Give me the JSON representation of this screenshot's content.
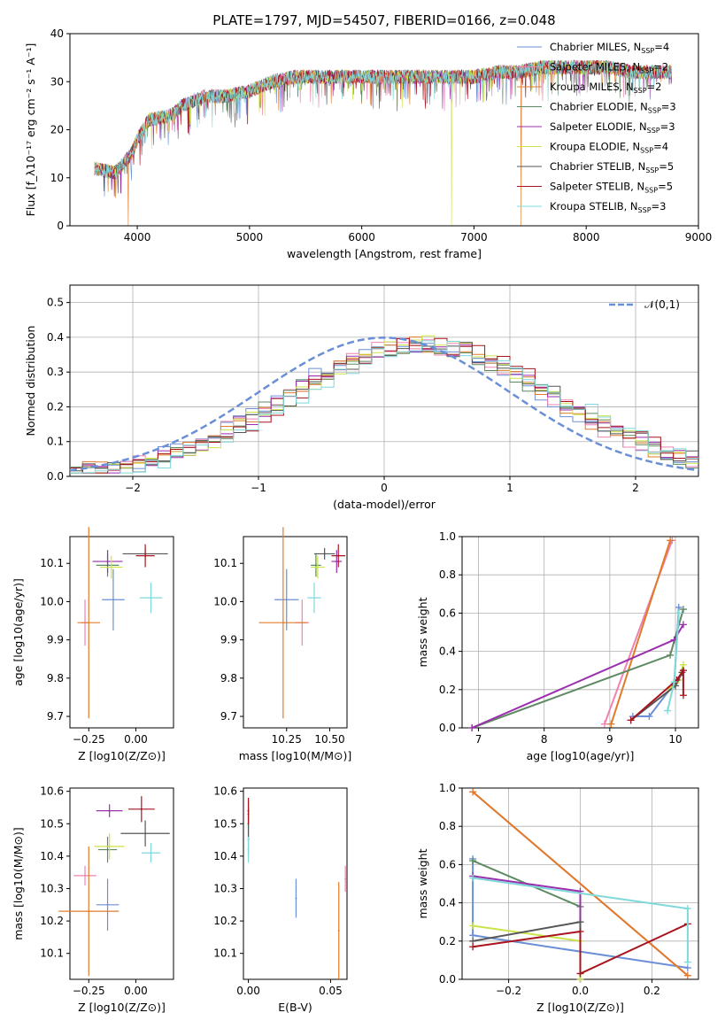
{
  "colors": {
    "chabrier_miles": "#6a8fd6",
    "salpeter_miles": "#ee82b0",
    "kroupa_miles": "#e07b2a",
    "chabrier_elodie": "#5e8a62",
    "salpeter_elodie": "#9b2fae",
    "kroupa_elodie": "#cde34a",
    "chabrier_stelib": "#555555",
    "salpeter_stelib": "#a8141d",
    "kroupa_stelib": "#7fd8da",
    "gauss": "#6a8fd6"
  },
  "chart_data": [
    {
      "id": "spectrum",
      "type": "line",
      "title": "PLATE=1797, MJD=54507, FIBERID=0166, z=0.048",
      "xlabel": "wavelength [Angstrom, rest frame]",
      "ylabel": "Flux [f_λ10⁻¹⁷ erg cm⁻² s⁻¹ A⁻¹]",
      "xlim": [
        3400,
        9000
      ],
      "ylim": [
        0,
        40
      ],
      "xticks": [
        "4000",
        "5000",
        "6000",
        "7000",
        "8000",
        "9000"
      ],
      "yticks": [
        "0",
        "10",
        "20",
        "30",
        "40"
      ],
      "legend": [
        "Chabrier MILES, N_SSP=4",
        "Salpeter MILES, N_SSP=2",
        "Kroupa MILES, N_SSP=2",
        "Chabrier ELODIE, N_SSP=3",
        "Salpeter ELODIE, N_SSP=3",
        "Kroupa ELODIE, N_SSP=4",
        "Chabrier STELIB, N_SSP=5",
        "Salpeter STELIB, N_SSP=5",
        "Kroupa STELIB, N_SSP=3"
      ],
      "continuum": [
        [
          3620,
          12
        ],
        [
          3800,
          11
        ],
        [
          3950,
          15
        ],
        [
          4000,
          18
        ],
        [
          4100,
          22
        ],
        [
          4300,
          23
        ],
        [
          4400,
          25
        ],
        [
          4600,
          27
        ],
        [
          4800,
          27
        ],
        [
          5000,
          28
        ],
        [
          5200,
          30
        ],
        [
          5400,
          31
        ],
        [
          5600,
          31
        ],
        [
          5800,
          31
        ],
        [
          6000,
          31
        ],
        [
          6200,
          31
        ],
        [
          6400,
          31
        ],
        [
          6600,
          31
        ],
        [
          6800,
          31
        ],
        [
          7000,
          31
        ],
        [
          7200,
          32
        ],
        [
          7400,
          32
        ],
        [
          7600,
          33
        ],
        [
          7800,
          33
        ],
        [
          8000,
          33
        ],
        [
          8200,
          33
        ],
        [
          8400,
          32
        ],
        [
          8600,
          32
        ],
        [
          8760,
          32
        ]
      ],
      "dropouts": [
        [
          3920,
          0
        ],
        [
          6800,
          0
        ],
        [
          7420,
          0
        ]
      ]
    },
    {
      "id": "residuals",
      "type": "line",
      "xlabel": "(data-model)/error",
      "ylabel": "Normed distribution",
      "xlim": [
        -2.5,
        2.5
      ],
      "ylim": [
        0,
        0.55
      ],
      "xticks": [
        "−2",
        "−1",
        "0",
        "1",
        "2"
      ],
      "yticks": [
        "0.0",
        "0.1",
        "0.2",
        "0.3",
        "0.4",
        "0.5"
      ],
      "legend": [
        "𝒩(0,1)"
      ],
      "hist_bins": [
        -2.5,
        -2.4,
        -2.3,
        -2.2,
        -2.1,
        -2.0,
        -1.9,
        -1.8,
        -1.7,
        -1.6,
        -1.5,
        -1.4,
        -1.3,
        -1.2,
        -1.1,
        -1.0,
        -0.9,
        -0.8,
        -0.7,
        -0.6,
        -0.5,
        -0.4,
        -0.3,
        -0.2,
        -0.1,
        0.0,
        0.1,
        0.2,
        0.3,
        0.4,
        0.5,
        0.6,
        0.7,
        0.8,
        0.9,
        1.0,
        1.1,
        1.2,
        1.3,
        1.4,
        1.5,
        1.6,
        1.7,
        1.8,
        1.9,
        2.0,
        2.1,
        2.2,
        2.3,
        2.4,
        2.5
      ]
    },
    {
      "id": "age_vs_Z",
      "type": "scatter",
      "xlabel": "Z [log10(Z/Z⊙)]",
      "ylabel": "age  [log10(age/yr)]",
      "xlim": [
        -0.35,
        0.2
      ],
      "ylim": [
        9.67,
        10.17
      ],
      "xticks": [
        "−0.25",
        "0.00"
      ],
      "yticks": [
        "9.7",
        "9.8",
        "9.9",
        "10.0",
        "10.1"
      ],
      "points": [
        {
          "c": "chabrier_miles",
          "x": -0.12,
          "xe": 0.06,
          "y": 10.005,
          "ye": 0.08
        },
        {
          "c": "salpeter_miles",
          "x": -0.27,
          "xe": 0.02,
          "y": 9.945,
          "ye": 0.06
        },
        {
          "c": "kroupa_miles",
          "x": -0.25,
          "xe": 0.06,
          "y": 9.945,
          "ye": 0.25
        },
        {
          "c": "chabrier_elodie",
          "x": -0.15,
          "xe": 0.06,
          "y": 10.095,
          "ye": 0.03
        },
        {
          "c": "salpeter_elodie",
          "x": -0.15,
          "xe": 0.08,
          "y": 10.105,
          "ye": 0.03
        },
        {
          "c": "kroupa_elodie",
          "x": -0.13,
          "xe": 0.06,
          "y": 10.09,
          "ye": 0.03
        },
        {
          "c": "chabrier_stelib",
          "x": 0.05,
          "xe": 0.12,
          "y": 10.125,
          "ye": 0.015
        },
        {
          "c": "salpeter_stelib",
          "x": 0.05,
          "xe": 0.05,
          "y": 10.12,
          "ye": 0.03
        },
        {
          "c": "kroupa_stelib",
          "x": 0.08,
          "xe": 0.06,
          "y": 10.01,
          "ye": 0.04
        }
      ]
    },
    {
      "id": "age_vs_mass",
      "type": "scatter",
      "xlabel": "mass [log10(M/M⊙)]",
      "ylabel": "",
      "xlim": [
        10.0,
        10.6
      ],
      "ylim": [
        9.67,
        10.17
      ],
      "xticks": [
        "10.25",
        "10.50"
      ],
      "yticks": [
        "9.7",
        "9.8",
        "9.9",
        "10.0",
        "10.1"
      ],
      "points": [
        {
          "c": "chabrier_miles",
          "x": 10.25,
          "xe": 0.07,
          "y": 10.005,
          "ye": 0.08
        },
        {
          "c": "salpeter_miles",
          "x": 10.34,
          "xe": 0.04,
          "y": 9.945,
          "ye": 0.06
        },
        {
          "c": "kroupa_miles",
          "x": 10.23,
          "xe": 0.14,
          "y": 9.945,
          "ye": 0.25
        },
        {
          "c": "chabrier_elodie",
          "x": 10.42,
          "xe": 0.03,
          "y": 10.095,
          "ye": 0.03
        },
        {
          "c": "salpeter_elodie",
          "x": 10.54,
          "xe": 0.03,
          "y": 10.105,
          "ye": 0.03
        },
        {
          "c": "kroupa_elodie",
          "x": 10.43,
          "xe": 0.04,
          "y": 10.09,
          "ye": 0.03
        },
        {
          "c": "chabrier_stelib",
          "x": 10.47,
          "xe": 0.06,
          "y": 10.125,
          "ye": 0.015
        },
        {
          "c": "salpeter_stelib",
          "x": 10.55,
          "xe": 0.04,
          "y": 10.12,
          "ye": 0.03
        },
        {
          "c": "kroupa_stelib",
          "x": 10.41,
          "xe": 0.04,
          "y": 10.01,
          "ye": 0.04
        }
      ]
    },
    {
      "id": "weight_vs_age",
      "type": "line",
      "xlabel": "age  [log10(age/yr)]",
      "ylabel": "mass weight",
      "xlim": [
        6.75,
        10.35
      ],
      "ylim": [
        0,
        1.0
      ],
      "xticks": [
        "7",
        "8",
        "9",
        "10"
      ],
      "yticks": [
        "0.0",
        "0.2",
        "0.4",
        "0.6",
        "0.8",
        "1.0"
      ],
      "lines": [
        {
          "c": "chabrier_miles",
          "pts": [
            [
              9.35,
              0.06
            ],
            [
              9.6,
              0.06
            ],
            [
              9.98,
              0.23
            ],
            [
              10.05,
              0.63
            ]
          ]
        },
        {
          "c": "salpeter_miles",
          "pts": [
            [
              8.92,
              0.02
            ],
            [
              9.95,
              0.98
            ]
          ]
        },
        {
          "c": "kroupa_miles",
          "pts": [
            [
              9.02,
              0.02
            ],
            [
              9.92,
              0.98
            ]
          ]
        },
        {
          "c": "chabrier_elodie",
          "pts": [
            [
              6.9,
              0.0
            ],
            [
              9.92,
              0.38
            ],
            [
              10.12,
              0.62
            ]
          ]
        },
        {
          "c": "salpeter_elodie",
          "pts": [
            [
              6.9,
              0.0
            ],
            [
              9.98,
              0.46
            ],
            [
              10.12,
              0.54
            ]
          ]
        },
        {
          "c": "kroupa_elodie",
          "pts": [
            [
              9.9,
              0.2
            ],
            [
              10.05,
              0.25
            ],
            [
              10.12,
              0.33
            ]
          ]
        },
        {
          "c": "chabrier_stelib",
          "pts": [
            [
              9.32,
              0.04
            ],
            [
              10.0,
              0.22
            ],
            [
              10.1,
              0.29
            ]
          ]
        },
        {
          "c": "salpeter_stelib",
          "pts": [
            [
              9.32,
              0.04
            ],
            [
              10.02,
              0.25
            ],
            [
              10.12,
              0.3
            ],
            [
              10.12,
              0.17
            ]
          ]
        },
        {
          "c": "kroupa_stelib",
          "pts": [
            [
              9.88,
              0.09
            ],
            [
              9.98,
              0.24
            ],
            [
              10.05,
              0.6
            ]
          ]
        }
      ]
    },
    {
      "id": "mass_vs_Z",
      "type": "scatter",
      "xlabel": "Z [log10(Z/Z⊙)]",
      "ylabel": "mass [log10(M/M⊙)]",
      "xlim": [
        -0.35,
        0.2
      ],
      "ylim": [
        10.02,
        10.61
      ],
      "xticks": [
        "−0.25",
        "0.00"
      ],
      "yticks": [
        "10.1",
        "10.2",
        "10.3",
        "10.4",
        "10.5",
        "10.6"
      ],
      "points": [
        {
          "c": "chabrier_miles",
          "x": -0.15,
          "xe": 0.06,
          "y": 10.25,
          "ye": 0.08
        },
        {
          "c": "salpeter_miles",
          "x": -0.27,
          "xe": 0.06,
          "y": 10.34,
          "ye": 0.03
        },
        {
          "c": "kroupa_miles",
          "x": -0.25,
          "xe": 0.16,
          "y": 10.23,
          "ye": 0.2
        },
        {
          "c": "chabrier_elodie",
          "x": -0.15,
          "xe": 0.05,
          "y": 10.42,
          "ye": 0.04
        },
        {
          "c": "salpeter_elodie",
          "x": -0.14,
          "xe": 0.07,
          "y": 10.54,
          "ye": 0.02
        },
        {
          "c": "kroupa_elodie",
          "x": -0.14,
          "xe": 0.08,
          "y": 10.43,
          "ye": 0.04
        },
        {
          "c": "chabrier_stelib",
          "x": 0.05,
          "xe": 0.13,
          "y": 10.47,
          "ye": 0.04
        },
        {
          "c": "salpeter_stelib",
          "x": 0.03,
          "xe": 0.07,
          "y": 10.545,
          "ye": 0.04
        },
        {
          "c": "kroupa_stelib",
          "x": 0.08,
          "xe": 0.05,
          "y": 10.41,
          "ye": 0.03
        }
      ]
    },
    {
      "id": "mass_vs_ebv",
      "type": "scatter",
      "xlabel": "E(B-V)",
      "ylabel": "",
      "xlim": [
        -0.003,
        0.06
      ],
      "ylim": [
        10.02,
        10.61
      ],
      "xticks": [
        "0.00",
        "0.05"
      ],
      "yticks": [
        "10.1",
        "10.2",
        "10.3",
        "10.4",
        "10.5",
        "10.6"
      ],
      "points": [
        {
          "c": "chabrier_miles",
          "x": 0.029,
          "xe": 0,
          "y": 10.27,
          "ye": 0.06
        },
        {
          "c": "salpeter_miles",
          "x": 0.059,
          "xe": 0,
          "y": 10.33,
          "ye": 0.04
        },
        {
          "c": "kroupa_miles",
          "x": 0.055,
          "xe": 0,
          "y": 10.17,
          "ye": 0.15
        },
        {
          "c": "chabrier_elodie",
          "x": 0.0,
          "xe": 0,
          "y": 10.45,
          "ye": 0.05
        },
        {
          "c": "salpeter_elodie",
          "x": 0.0,
          "xe": 0,
          "y": 10.53,
          "ye": 0.04
        },
        {
          "c": "kroupa_elodie",
          "x": 0.0,
          "xe": 0,
          "y": 10.45,
          "ye": 0.05
        },
        {
          "c": "chabrier_stelib",
          "x": 0.0,
          "xe": 0,
          "y": 10.5,
          "ye": 0.05
        },
        {
          "c": "salpeter_stelib",
          "x": 0.0,
          "xe": 0,
          "y": 10.54,
          "ye": 0.04
        },
        {
          "c": "kroupa_stelib",
          "x": 0.0,
          "xe": 0,
          "y": 10.42,
          "ye": 0.04
        }
      ]
    },
    {
      "id": "weight_vs_Z",
      "type": "line",
      "xlabel": "Z [log10(Z/Z⊙)]",
      "ylabel": "mass weight",
      "xlim": [
        -0.33,
        0.33
      ],
      "ylim": [
        0,
        1.0
      ],
      "xticks": [
        "−0.2",
        "0.0",
        "0.2"
      ],
      "yticks": [
        "0.0",
        "0.2",
        "0.4",
        "0.6",
        "0.8",
        "1.0"
      ],
      "lines": [
        {
          "c": "chabrier_miles",
          "pts": [
            [
              -0.3,
              0.63
            ],
            [
              -0.3,
              0.23
            ],
            [
              0.3,
              0.06
            ]
          ]
        },
        {
          "c": "salpeter_miles",
          "pts": [
            [
              -0.3,
              0.98
            ],
            [
              0.3,
              0.02
            ]
          ]
        },
        {
          "c": "kroupa_miles",
          "pts": [
            [
              -0.3,
              0.98
            ],
            [
              0.3,
              0.02
            ]
          ]
        },
        {
          "c": "chabrier_elodie",
          "pts": [
            [
              -0.3,
              0.62
            ],
            [
              0.0,
              0.38
            ],
            [
              0.0,
              0.0
            ]
          ]
        },
        {
          "c": "salpeter_elodie",
          "pts": [
            [
              -0.3,
              0.54
            ],
            [
              0.0,
              0.46
            ],
            [
              0.0,
              0.0
            ]
          ]
        },
        {
          "c": "kroupa_elodie",
          "pts": [
            [
              -0.3,
              0.28
            ],
            [
              0.0,
              0.2
            ],
            [
              0.0,
              0.0
            ]
          ]
        },
        {
          "c": "chabrier_stelib",
          "pts": [
            [
              -0.3,
              0.2
            ],
            [
              0.0,
              0.3
            ],
            [
              0.0,
              0.03
            ]
          ]
        },
        {
          "c": "salpeter_stelib",
          "pts": [
            [
              -0.3,
              0.17
            ],
            [
              0.0,
              0.25
            ],
            [
              0.0,
              0.03
            ],
            [
              0.3,
              0.29
            ]
          ]
        },
        {
          "c": "kroupa_stelib",
          "pts": [
            [
              -0.3,
              0.53
            ],
            [
              0.3,
              0.37
            ],
            [
              0.3,
              0.09
            ]
          ]
        }
      ]
    }
  ]
}
